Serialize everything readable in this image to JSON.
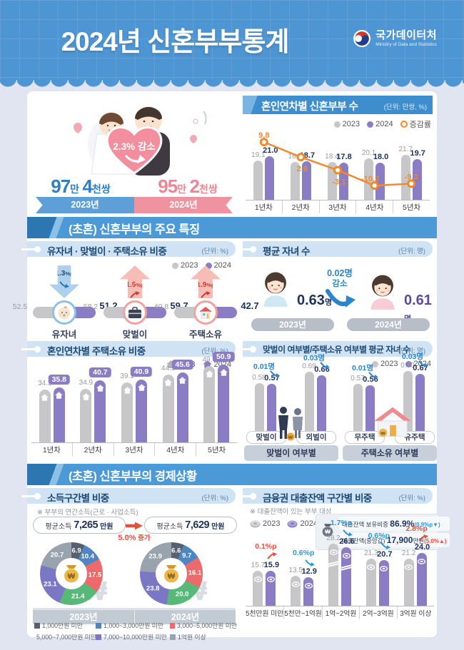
{
  "header": {
    "title": "2024년 신혼부부통계",
    "logo_text": "국가데이터처",
    "logo_subtext": "Ministry of Data and Statistics"
  },
  "hero": {
    "badge": "2.3% 감소",
    "left": {
      "n1": "97",
      "u1": "만",
      "n2": "4",
      "u2": "천쌍",
      "year": "2023년",
      "color": "#2e80c3"
    },
    "right": {
      "n1": "95",
      "u1": "만",
      "n2": "2",
      "u2": "천쌍",
      "year": "2024년",
      "color": "#ee8494"
    }
  },
  "sections": {
    "features": "(초혼) 신혼부부의 주요 특징",
    "economy": "(초혼) 신혼부부의 경제상황"
  },
  "chart_data": [
    {
      "id": "couples_by_year_of_marriage",
      "type": "bar",
      "title": "혼인연차별 신혼부부 수",
      "unit": "(단위: 만쌍, %)",
      "categories": [
        "1년차",
        "2년차",
        "3년차",
        "4년차",
        "5년차"
      ],
      "series": [
        {
          "name": "2023",
          "values": [
            19.1,
            18.2,
            18.4,
            20.1,
            21.7
          ]
        },
        {
          "name": "2024",
          "values": [
            21.0,
            18.7,
            17.8,
            18.0,
            19.7
          ]
        }
      ],
      "line": {
        "name": "증감률",
        "values": [
          9.8,
          2.9,
          -3.1,
          -10.2,
          -9.3
        ]
      }
    },
    {
      "id": "key_feature_ratios",
      "type": "bar",
      "title": "유자녀 · 맞벌이 · 주택소유 비중",
      "unit": "(단위: %)",
      "legend": [
        "2023",
        "2024"
      ],
      "items": [
        {
          "label": "유자녀",
          "v2023": 52.5,
          "v2024": 51.2,
          "change_num": "1.3",
          "change_suffix": "%p",
          "dir": "down",
          "icon": "baby"
        },
        {
          "label": "맞벌이",
          "v2023": 58.2,
          "v2024": 59.7,
          "change_num": "1.5",
          "change_suffix": "%p",
          "dir": "up",
          "icon": "briefcase"
        },
        {
          "label": "주택소유",
          "v2023": 40.8,
          "v2024": 42.7,
          "change_num": "1.9",
          "change_suffix": "%p",
          "dir": "up",
          "icon": "house"
        }
      ]
    },
    {
      "id": "average_children",
      "type": "table",
      "title": "평균 자녀 수",
      "unit": "(단위: 명)",
      "left": {
        "year": "2023년",
        "value": "0.63",
        "suffix": "명"
      },
      "right": {
        "year": "2024년",
        "value": "0.61",
        "suffix": "명"
      },
      "change_line1": "0.02명",
      "change_line2": "감소"
    },
    {
      "id": "home_ownership_by_year",
      "type": "bar",
      "title": "혼인연차별 주택소유 비중",
      "unit": "(단위: %)",
      "legend": [
        "2023",
        "2024"
      ],
      "categories": [
        "1년차",
        "2년차",
        "3년차",
        "4년차",
        "5년차"
      ],
      "series": [
        {
          "name": "2023",
          "values": [
            34.3,
            34.9,
            39.1,
            44.3,
            49.6
          ]
        },
        {
          "name": "2024",
          "values": [
            35.8,
            40.7,
            40.9,
            45.6,
            50.9
          ]
        }
      ]
    },
    {
      "id": "children_by_dualincome_and_home",
      "type": "bar",
      "title": "맞벌이 여부별/주택소유 여부별 평균 자녀 수",
      "unit": "(단위: 명)",
      "legend": [
        "2023",
        "2024"
      ],
      "groups": [
        {
          "label": "맞벌이 여부별",
          "illustration": "couple",
          "items": [
            {
              "label": "맞벌이",
              "v2023": 0.58,
              "v2024": 0.57,
              "change": "0.01명"
            },
            {
              "label": "외벌이",
              "v2023": 0.69,
              "v2024": 0.66,
              "change": "0.03명"
            }
          ]
        },
        {
          "label": "주택소유 여부별",
          "illustration": "house",
          "items": [
            {
              "label": "무주택",
              "v2023": 0.57,
              "v2024": 0.56,
              "change": "0.01명"
            },
            {
              "label": "유주택",
              "v2023": 0.7,
              "v2024": 0.67,
              "change": "0.03명"
            }
          ]
        }
      ]
    },
    {
      "id": "income_distribution",
      "type": "pie",
      "title": "소득구간별 비중",
      "unit": "(단위: %)",
      "note": "※ 부부의 연간소득(근로 · 사업소득)",
      "avg_left": {
        "label": "평균소득",
        "value": "7,265",
        "suffix": "만원"
      },
      "avg_right": {
        "label": "평균소득",
        "value": "7,629",
        "suffix": "만원"
      },
      "avg_change": {
        "num": "5.0%",
        "text": "증가"
      },
      "categories": [
        "1,000만원 미만",
        "1,000~3,000만원 미만",
        "3,000~5,000만원 미만",
        "5,000~7,000만원 미만",
        "7,000~10,000만원 미만",
        "1억원 이상"
      ],
      "colors": [
        "#566070",
        "#4e86c4",
        "#ec6a6c",
        "#57b878",
        "#7a77c5",
        "#99a3ad"
      ],
      "pies": [
        {
          "year": "2023년",
          "values": [
            6.9,
            10.4,
            17.5,
            21.4,
            23.1,
            20.7
          ]
        },
        {
          "year": "2024년",
          "values": [
            6.6,
            9.7,
            16.1,
            20.0,
            23.8,
            23.9
          ]
        }
      ]
    },
    {
      "id": "loan_balance_distribution",
      "type": "bar",
      "title": "금융권 대출잔액 구간별 비중",
      "unit": "(단위: %)",
      "note": "※ 대출잔액이 있는 부부 대상",
      "legend": [
        "2023",
        "2024"
      ],
      "info": [
        {
          "label": "대출잔액 보유비중",
          "value": "86.9%",
          "change": "(0.9%p▼)",
          "dir": "down"
        },
        {
          "label": "대출잔액(중앙값)",
          "value": "17,900",
          "suffix": "만원",
          "change": "(5.0%▲)",
          "dir": "up"
        }
      ],
      "categories": [
        "5천만원 미만",
        "5천만~1억원",
        "1억~2억원",
        "2억~3억원",
        "3억원 이상"
      ],
      "series": [
        {
          "name": "2023",
          "values": [
            15.7,
            13.5,
            28.2,
            21.3,
            21.2
          ]
        },
        {
          "name": "2024",
          "values": [
            15.9,
            12.9,
            26.6,
            20.7,
            24.0
          ]
        }
      ],
      "changes": [
        {
          "text": "0.1%p",
          "dir": "up"
        },
        {
          "text": "0.6%p",
          "dir": "down"
        },
        {
          "text": "1.7%p",
          "dir": "down"
        },
        {
          "text": "0.6%p",
          "dir": "down"
        },
        {
          "text": "2.8%p",
          "dir": "up"
        }
      ],
      "axis_break_index": 2
    }
  ]
}
